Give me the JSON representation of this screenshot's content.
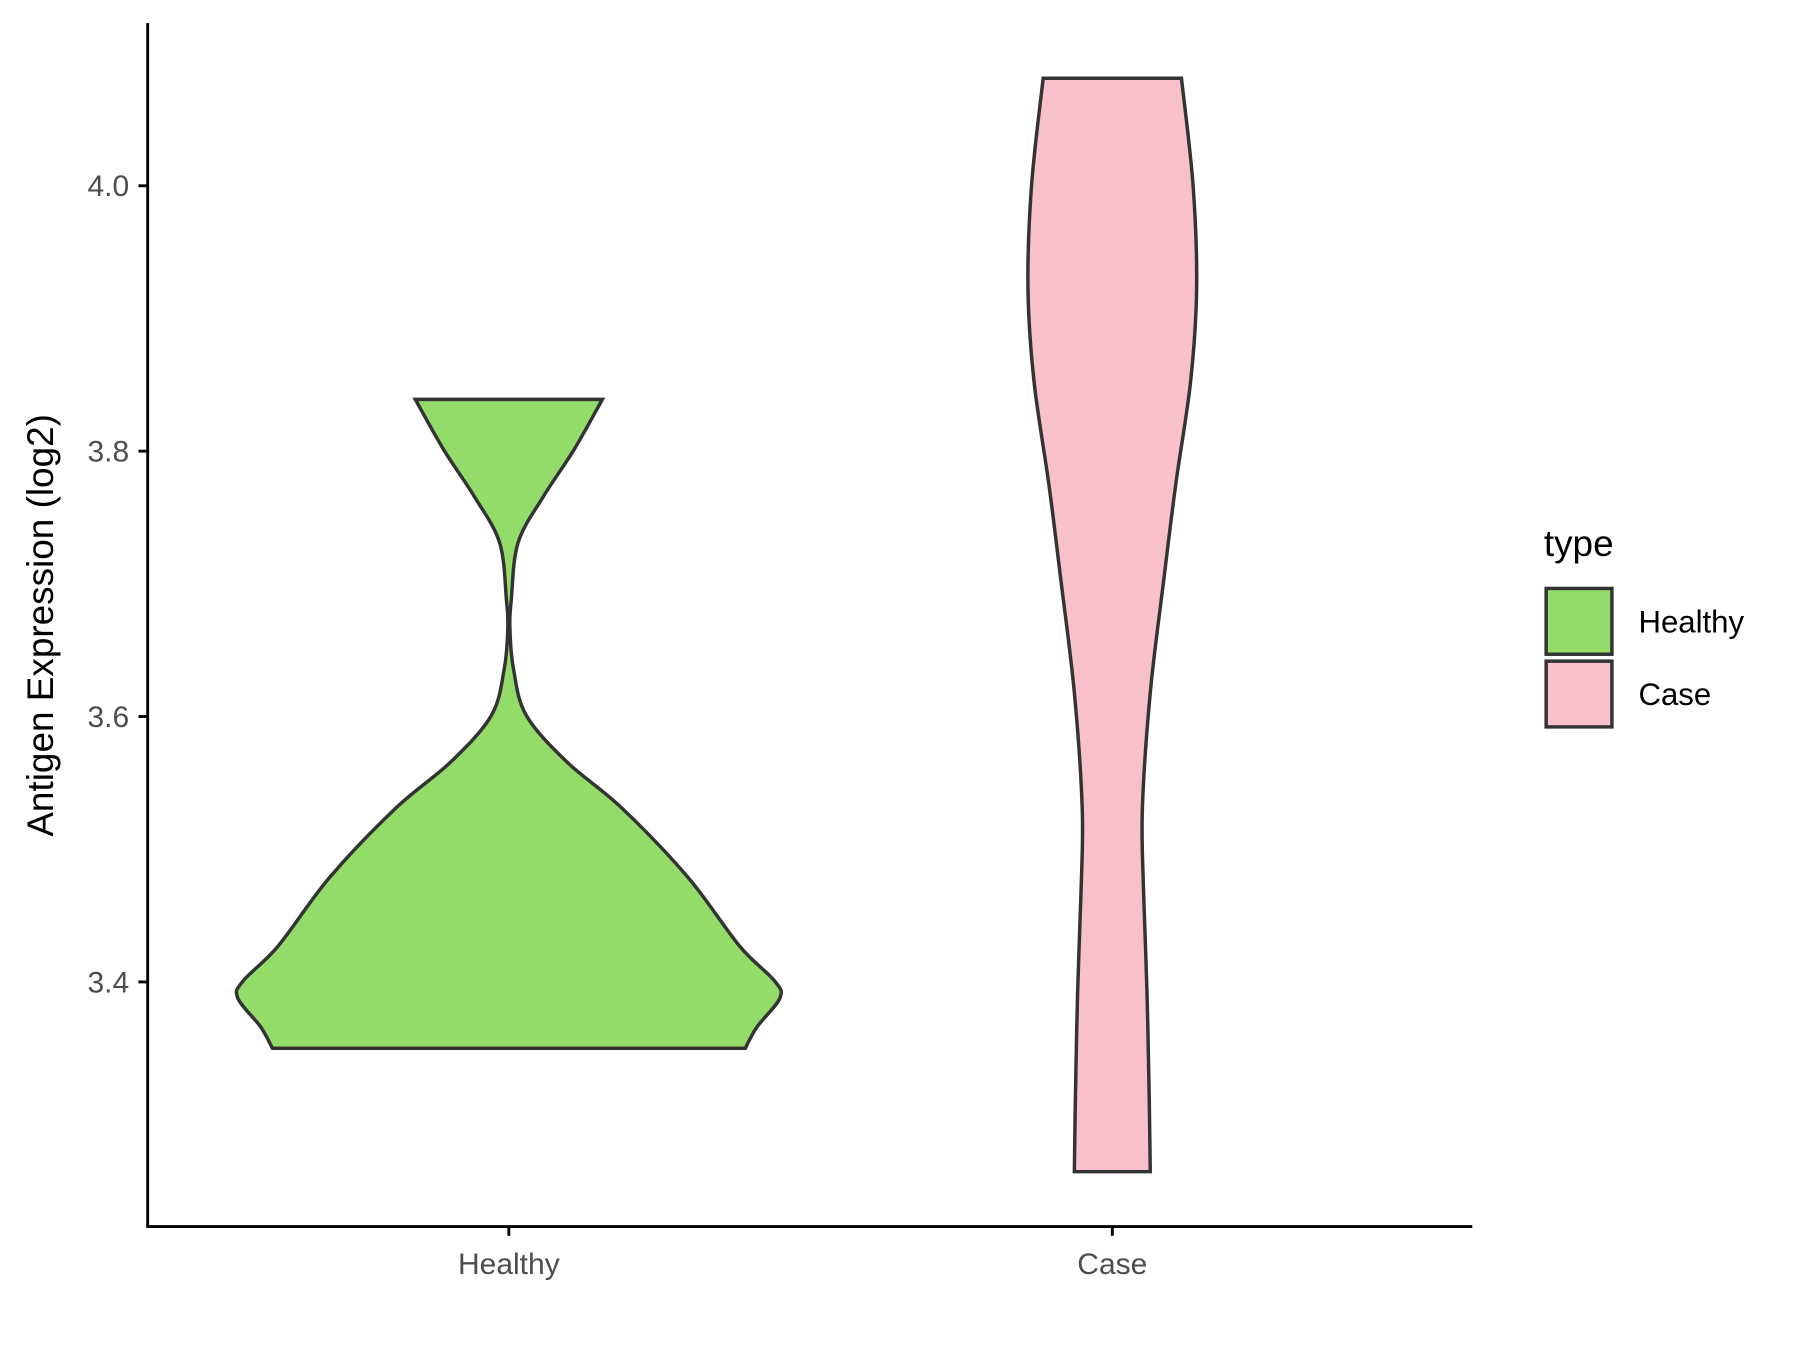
{
  "chart_data": {
    "type": "violin",
    "title": "",
    "xlabel": "",
    "ylabel": "Antigen Expression (log2)",
    "ylim": [
      3.22,
      4.12
    ],
    "yticks": [
      "3.4",
      "3.6",
      "3.8",
      "4.0"
    ],
    "categories": [
      "Healthy",
      "Case"
    ],
    "grid": false,
    "legend": {
      "title": "type",
      "position": "right",
      "entries": [
        "Healthy",
        "Case"
      ]
    },
    "series": [
      {
        "name": "Healthy",
        "color": "#93DC6A",
        "range": [
          3.35,
          3.839
        ],
        "profile": [
          [
            3.839,
            0.345
          ],
          [
            3.801,
            0.24
          ],
          [
            3.766,
            0.128
          ],
          [
            3.731,
            0.034
          ],
          [
            3.688,
            0.009
          ],
          [
            3.666,
            0.004
          ],
          [
            3.636,
            0.017
          ],
          [
            3.601,
            0.064
          ],
          [
            3.566,
            0.213
          ],
          [
            3.531,
            0.417
          ],
          [
            3.479,
            0.66
          ],
          [
            3.427,
            0.851
          ],
          [
            3.401,
            0.979
          ],
          [
            3.388,
            1.0
          ],
          [
            3.366,
            0.915
          ],
          [
            3.35,
            0.872
          ]
        ]
      },
      {
        "name": "Case",
        "color": "#F8C0CB",
        "range": [
          3.257,
          4.081
        ],
        "profile": [
          [
            4.081,
            0.255
          ],
          [
            4.0,
            0.298
          ],
          [
            3.923,
            0.311
          ],
          [
            3.853,
            0.289
          ],
          [
            3.775,
            0.234
          ],
          [
            3.705,
            0.191
          ],
          [
            3.618,
            0.14
          ],
          [
            3.531,
            0.111
          ],
          [
            3.47,
            0.115
          ],
          [
            3.392,
            0.128
          ],
          [
            3.314,
            0.136
          ],
          [
            3.257,
            0.14
          ]
        ]
      }
    ]
  },
  "outline_color": "#333333"
}
